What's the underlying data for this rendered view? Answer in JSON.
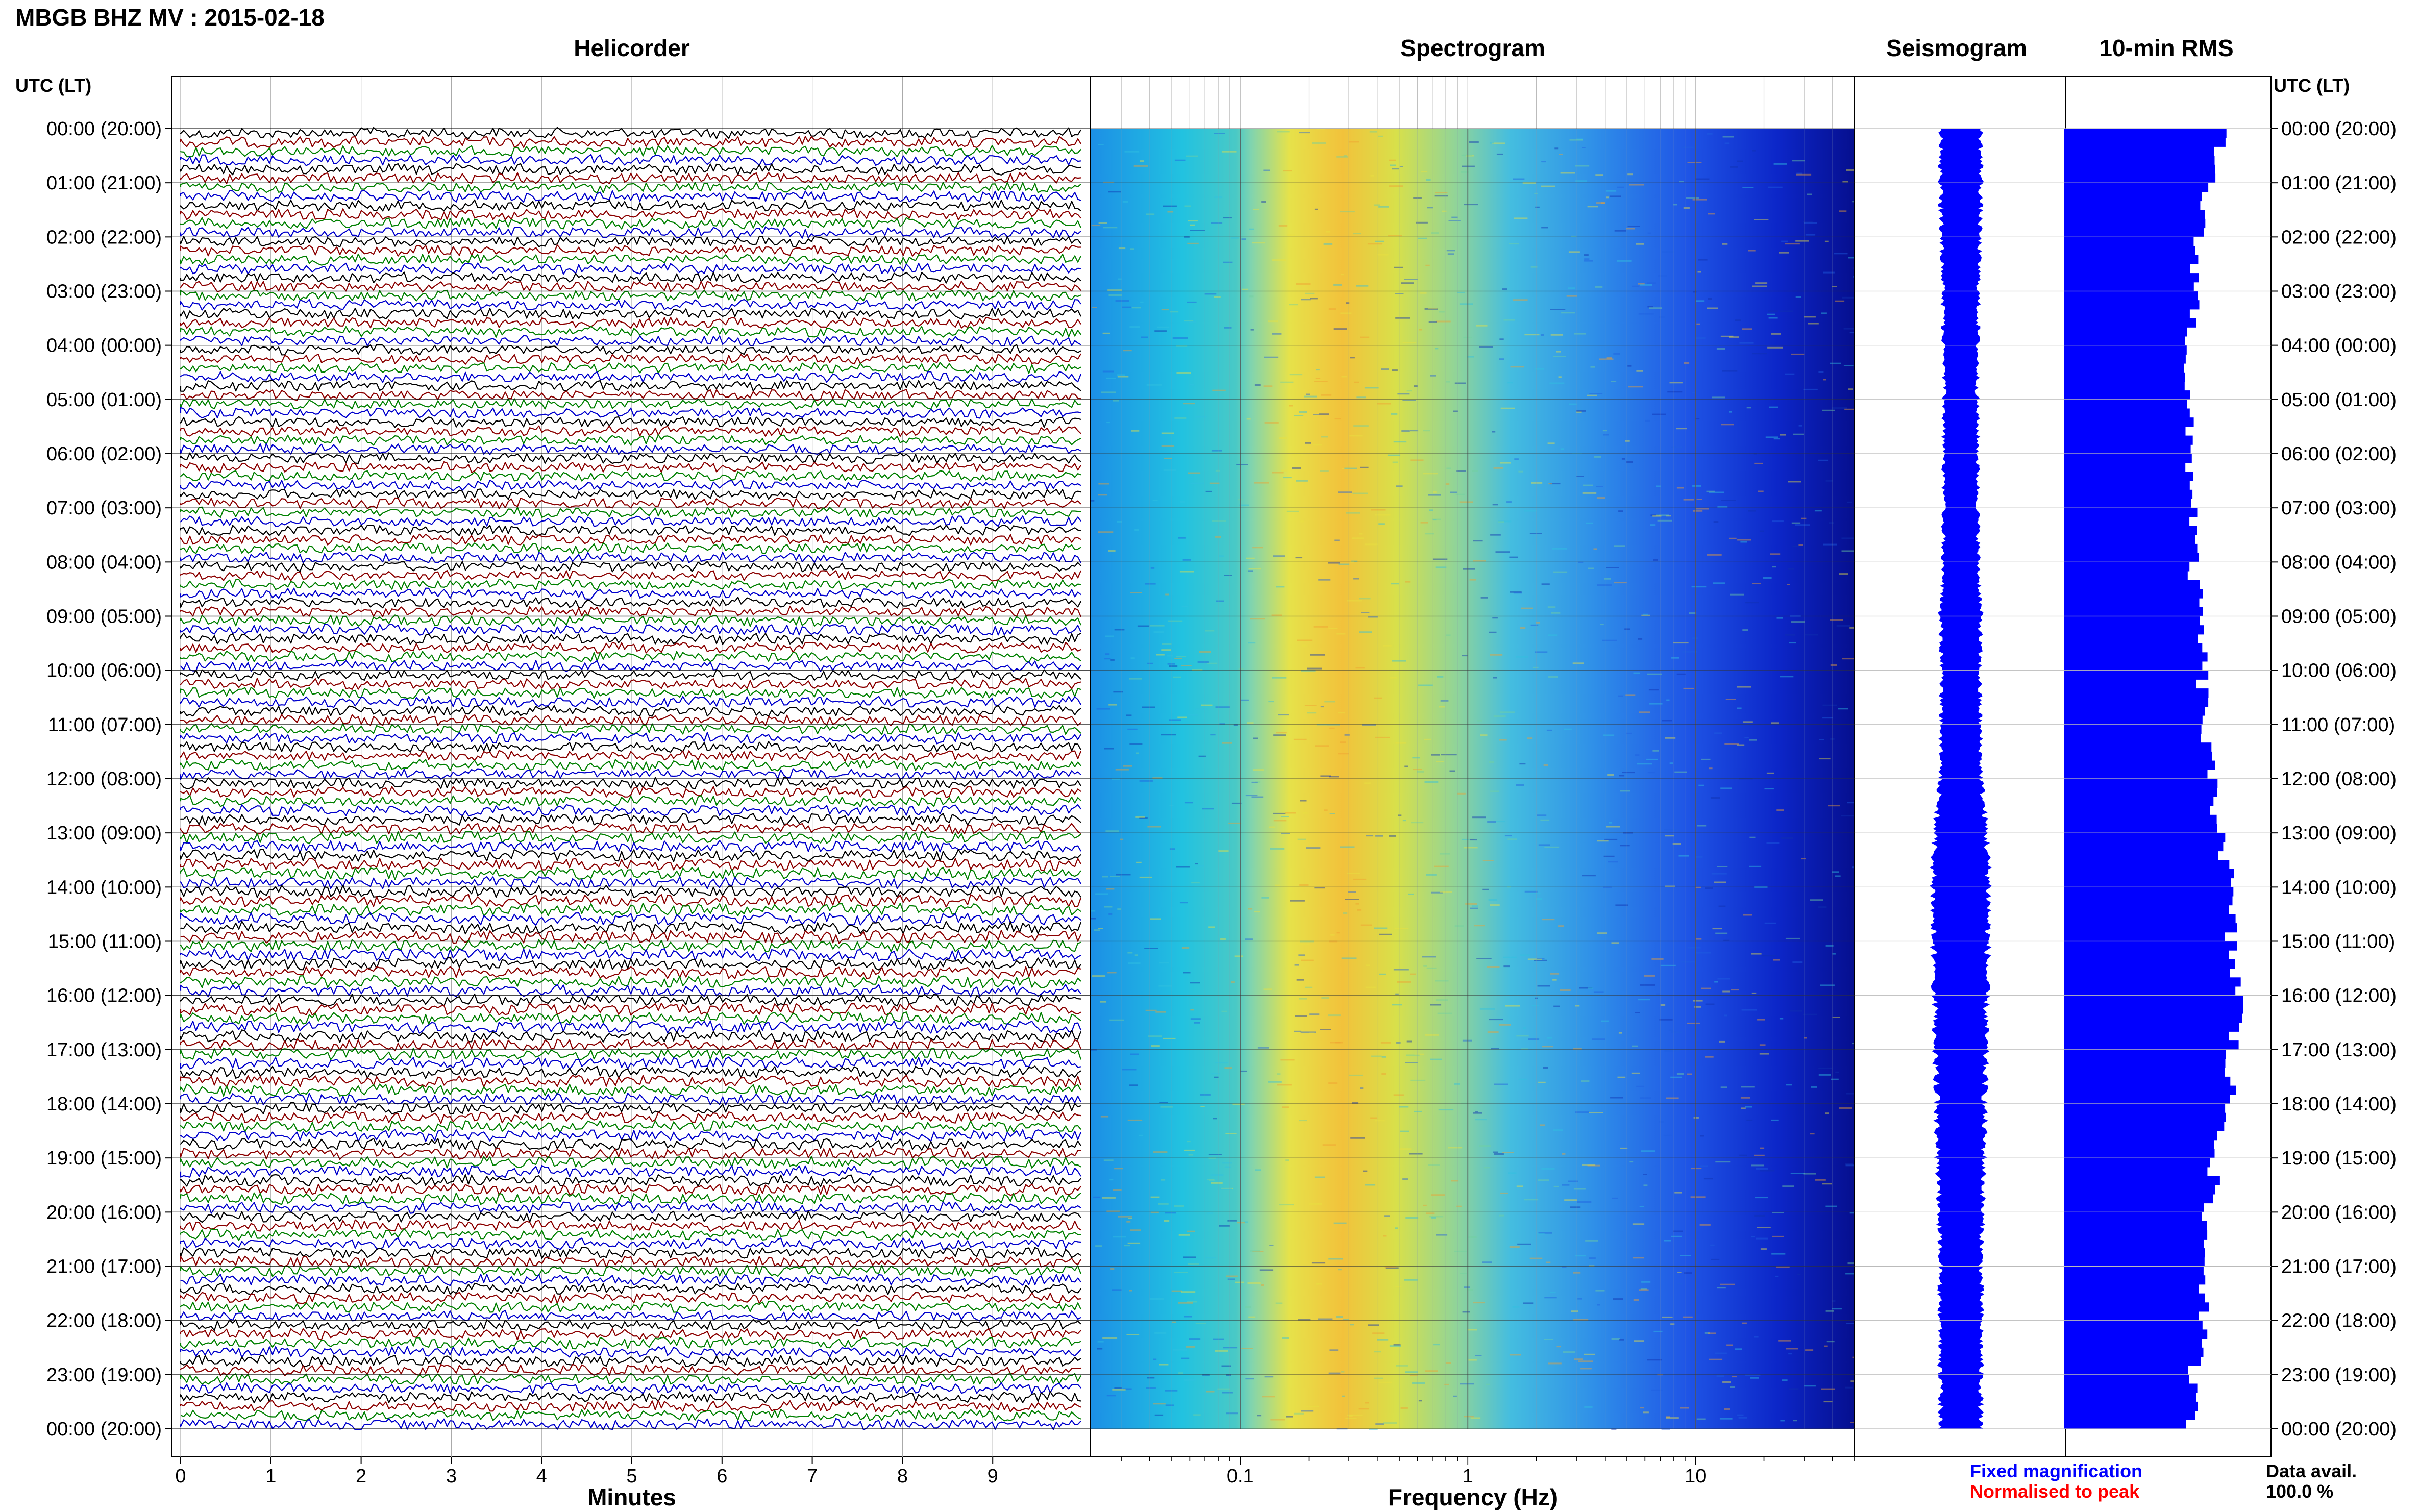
{
  "station_title": "MBGB BHZ MV : 2015-02-18",
  "panels": {
    "helicorder": "Helicorder",
    "spectrogram": "Spectrogram",
    "seismogram": "Seismogram",
    "rms": "10-min RMS"
  },
  "axis_header_left": "UTC (LT)",
  "axis_header_right": "UTC (LT)",
  "legend": {
    "fixed": "Fixed magnification",
    "fixed_color": "#0000ff",
    "normalised": "Normalised to peak",
    "normalised_color": "#ff0000"
  },
  "data_avail": {
    "label": "Data avail.",
    "value": "100.0 %"
  },
  "chart_data": [
    {
      "type": "line",
      "panel": "Helicorder",
      "xlabel": "Minutes",
      "x_ticks": [
        "0",
        "1",
        "2",
        "3",
        "4",
        "5",
        "6",
        "7",
        "8",
        "9"
      ],
      "xlim": [
        0,
        10
      ],
      "y_ticks": [
        "00:00 (20:00)",
        "01:00 (21:00)",
        "02:00 (22:00)",
        "03:00 (23:00)",
        "04:00 (00:00)",
        "05:00 (01:00)",
        "06:00 (02:00)",
        "07:00 (03:00)",
        "08:00 (04:00)",
        "09:00 (05:00)",
        "10:00 (06:00)",
        "11:00 (07:00)",
        "12:00 (08:00)",
        "13:00 (09:00)",
        "14:00 (10:00)",
        "15:00 (11:00)",
        "16:00 (12:00)",
        "17:00 (13:00)",
        "18:00 (14:00)",
        "19:00 (15:00)",
        "20:00 (16:00)",
        "21:00 (17:00)",
        "22:00 (18:00)",
        "23:00 (19:00)",
        "00:00 (20:00)"
      ],
      "trace_colors": [
        "#000000",
        "#8b0000",
        "#008000",
        "#0000cd"
      ],
      "lines_per_hour": 6,
      "grid": true
    },
    {
      "type": "heatmap",
      "panel": "Spectrogram",
      "xlabel": "Frequency (Hz)",
      "x_scale": "log",
      "x_ticks": [
        "0.1",
        "1",
        "10"
      ],
      "xlim": [
        0.022,
        50
      ],
      "colormap": "jet",
      "grid": true
    },
    {
      "type": "area",
      "panel": "Seismogram",
      "color": "#0000ff",
      "half_width_by_hour": [
        0.35,
        0.36,
        0.33,
        0.31,
        0.3,
        0.29,
        0.3,
        0.3,
        0.31,
        0.35,
        0.33,
        0.34,
        0.36,
        0.45,
        0.5,
        0.48,
        0.45,
        0.44,
        0.42,
        0.41,
        0.38,
        0.36,
        0.36,
        0.36,
        0.35
      ]
    },
    {
      "type": "bar",
      "panel": "10-min RMS",
      "orientation": "horizontal",
      "color": "#0000ff",
      "values_by_hour": [
        0.78,
        0.72,
        0.66,
        0.66,
        0.62,
        0.61,
        0.63,
        0.65,
        0.64,
        0.68,
        0.69,
        0.7,
        0.73,
        0.8,
        0.82,
        0.83,
        0.88,
        0.83,
        0.82,
        0.76,
        0.7,
        0.71,
        0.69,
        0.64,
        0.64
      ]
    }
  ]
}
